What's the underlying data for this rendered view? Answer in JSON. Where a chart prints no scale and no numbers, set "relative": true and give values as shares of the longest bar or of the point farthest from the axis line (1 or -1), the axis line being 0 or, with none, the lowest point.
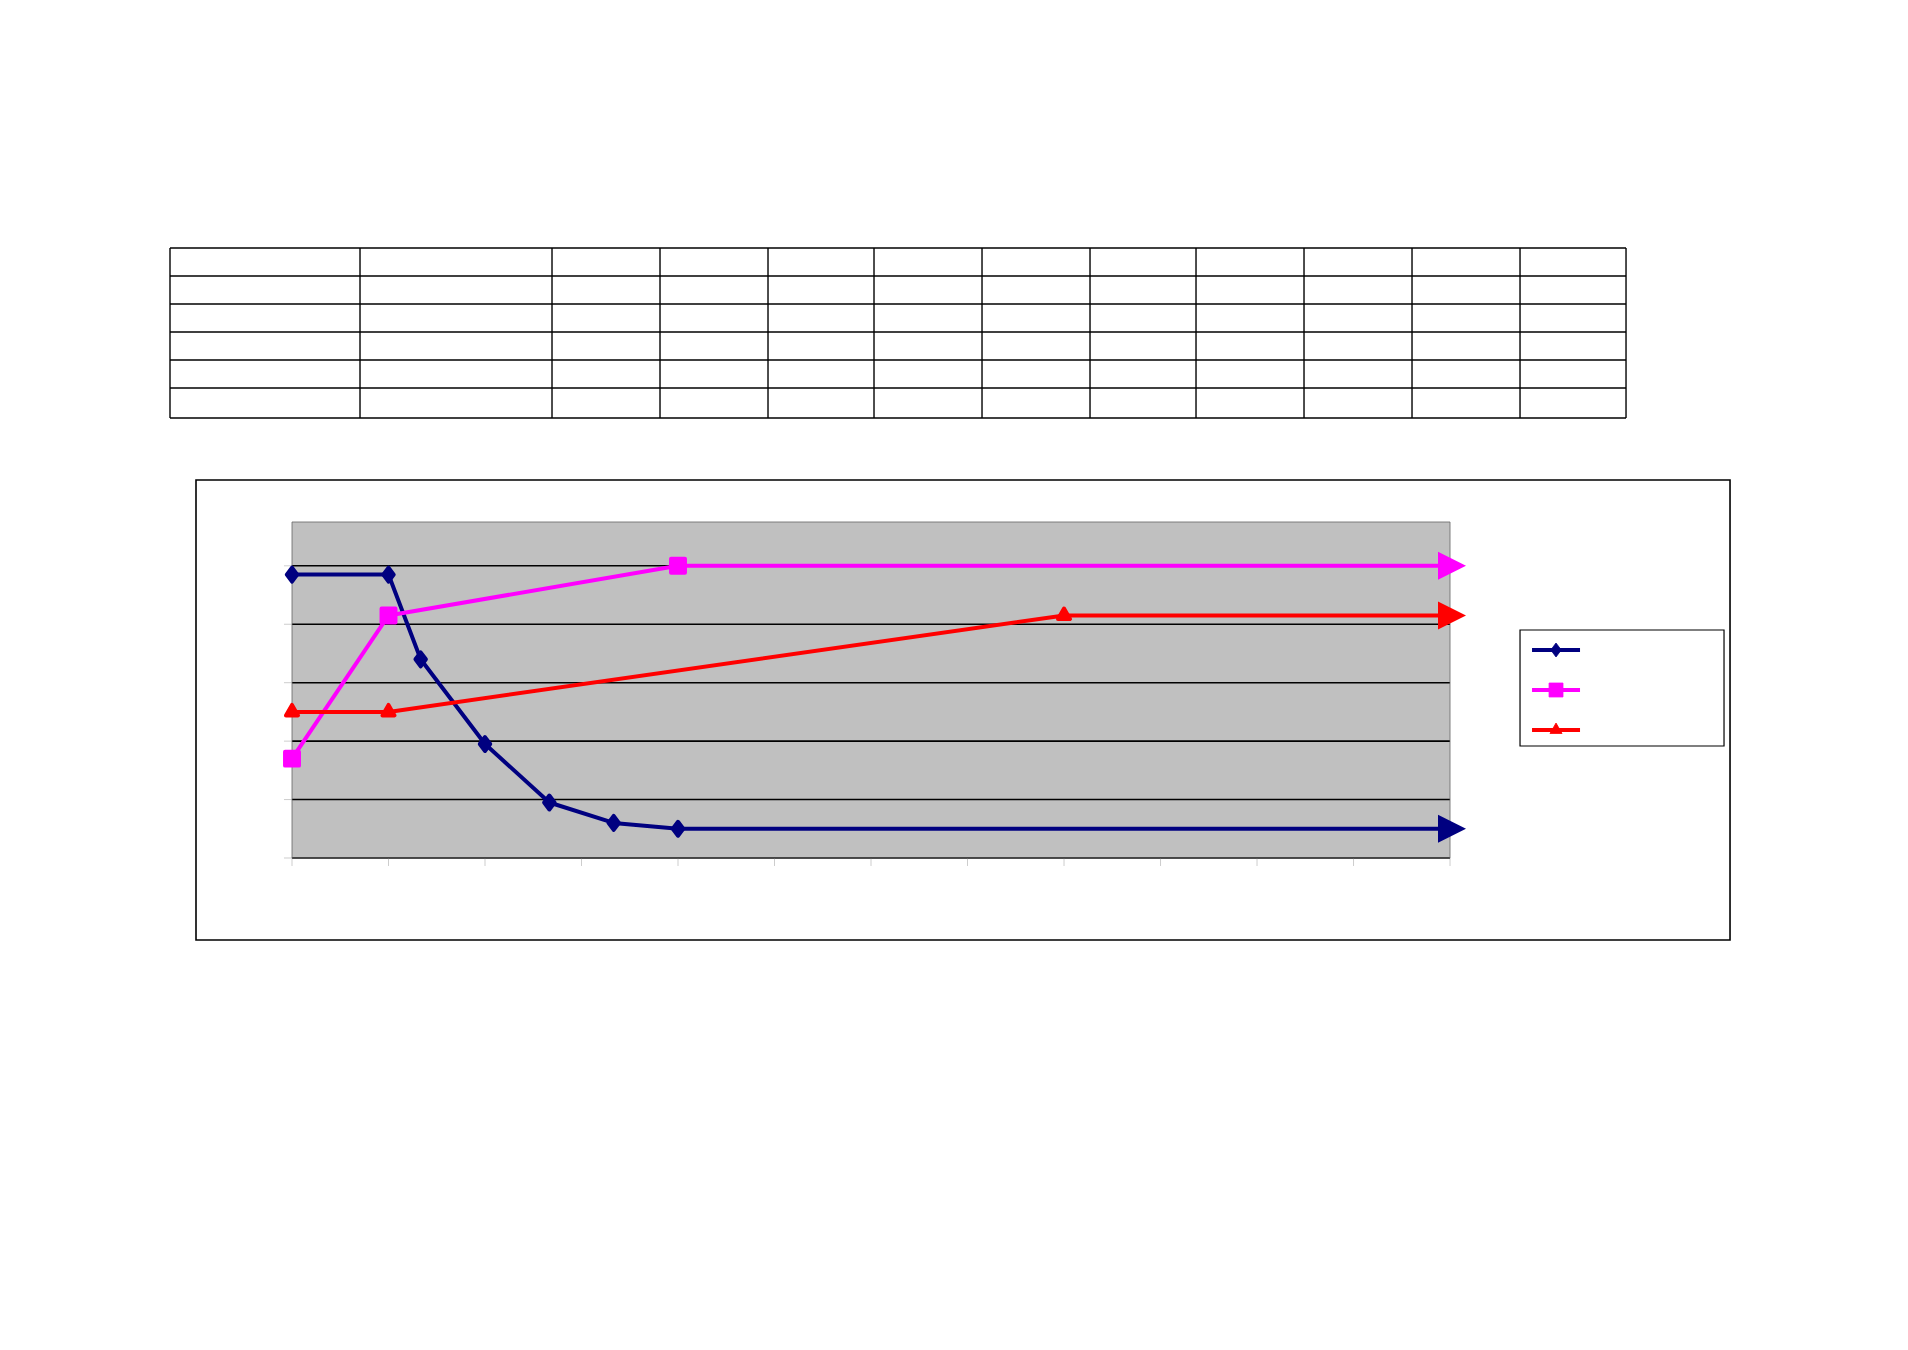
{
  "chart_data": {
    "type": "line",
    "relative": true,
    "grid": "y",
    "line_style": "solid",
    "categories": [
      null,
      null,
      null,
      null,
      null,
      null,
      null,
      null,
      null,
      null,
      null,
      null,
      null,
      null,
      null,
      null,
      null,
      null,
      null,
      null,
      null,
      null,
      null,
      null,
      null,
      null,
      null,
      null,
      null,
      null,
      null,
      null,
      null,
      null,
      null,
      null,
      null
    ],
    "series": [
      {
        "color": "#000080",
        "marker": "diamond",
        "values": [
          0.97,
          null,
          null,
          0.97,
          0.68,
          null,
          0.39,
          null,
          0.19,
          null,
          0.12,
          null,
          0.1,
          null,
          null,
          null,
          null,
          null,
          null,
          null,
          null,
          null,
          null,
          null,
          null,
          null,
          null,
          null,
          null,
          null,
          null,
          null,
          null,
          null,
          null,
          null,
          0.1
        ]
      },
      {
        "color": "#ff00ff",
        "marker": "square",
        "values": [
          0.34,
          null,
          null,
          0.83,
          null,
          null,
          null,
          null,
          null,
          null,
          null,
          null,
          1,
          null,
          null,
          null,
          null,
          null,
          null,
          null,
          null,
          null,
          null,
          null,
          null,
          null,
          null,
          null,
          null,
          null,
          null,
          null,
          null,
          null,
          null,
          null,
          1
        ]
      },
      {
        "color": "#ff0000",
        "marker": "triangle",
        "values": [
          0.5,
          null,
          null,
          0.5,
          null,
          null,
          null,
          null,
          null,
          null,
          null,
          null,
          null,
          null,
          null,
          null,
          null,
          null,
          null,
          null,
          null,
          null,
          null,
          null,
          0.83,
          null,
          null,
          null,
          null,
          null,
          null,
          null,
          null,
          null,
          null,
          null,
          0.83
        ]
      }
    ]
  }
}
